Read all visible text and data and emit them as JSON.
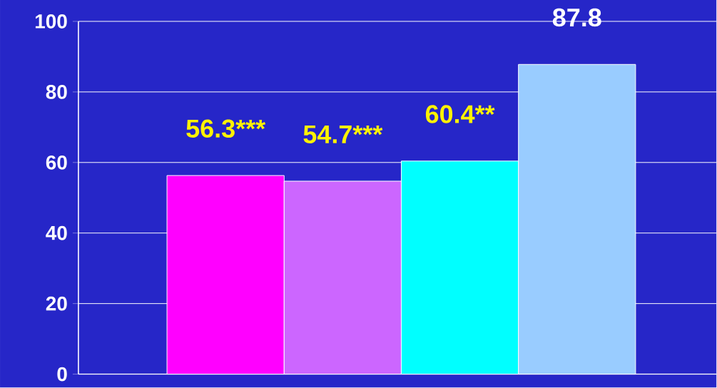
{
  "chart_data": {
    "type": "bar",
    "categories": [
      null,
      null,
      null,
      null
    ],
    "values": [
      56.3,
      54.7,
      60.4,
      87.8
    ],
    "colors": [
      "#ff00ff",
      "#cc66ff",
      "#00ffff",
      "#99ccff"
    ],
    "value_labels": [
      "56.3***",
      "54.7***",
      "60.4**",
      "87.8"
    ],
    "ylim": [
      0,
      100
    ],
    "yticks": [
      0,
      20,
      40,
      60,
      80,
      100
    ],
    "grid": "y"
  }
}
